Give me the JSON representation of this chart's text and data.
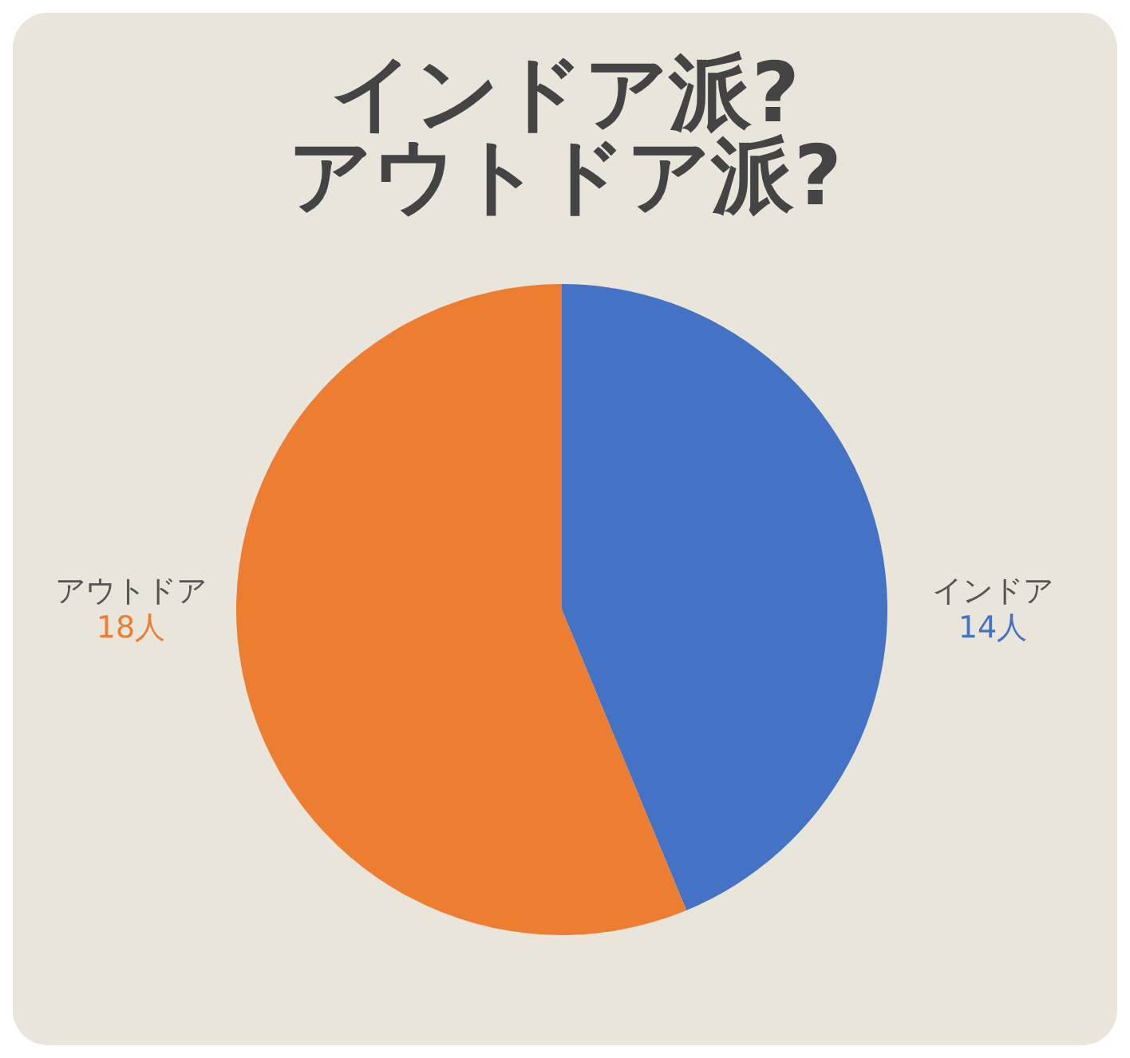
{
  "chart_data": {
    "type": "pie",
    "title": "インドア派?\nアウトドア派?",
    "categories": [
      "インドア",
      "アウトドア"
    ],
    "values": [
      14,
      18
    ],
    "colors": [
      "#4472c4",
      "#ed7d31"
    ],
    "value_labels": [
      "14人",
      "18人"
    ]
  }
}
